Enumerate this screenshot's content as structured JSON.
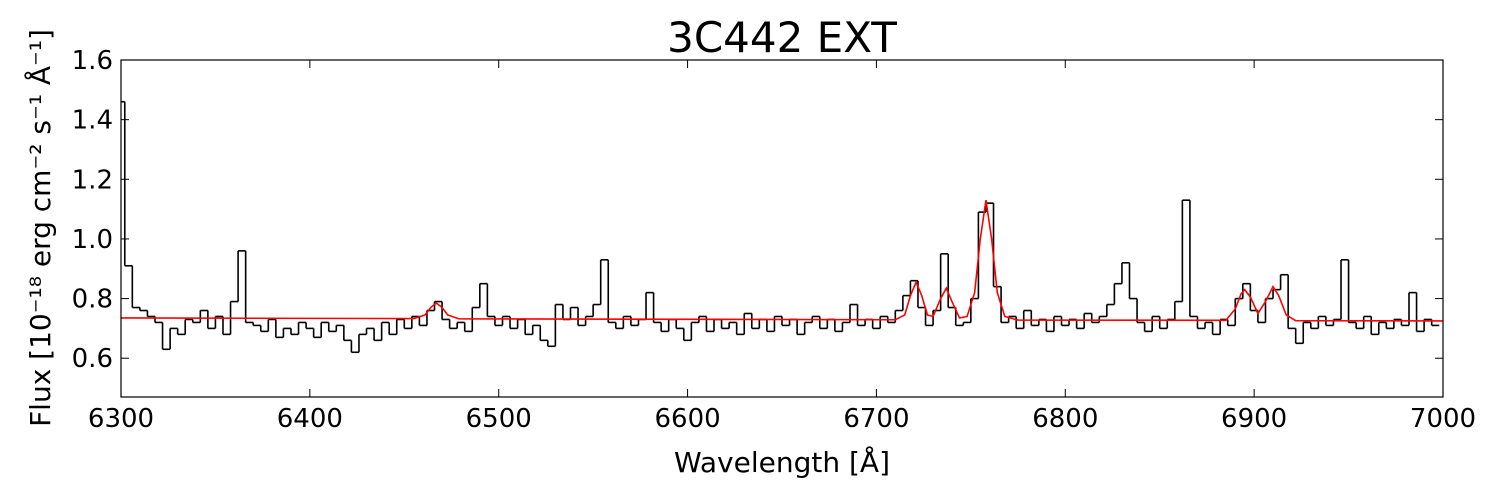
{
  "chart_data": {
    "type": "line",
    "title": "3C442 EXT",
    "xlabel": "Wavelength [Å]",
    "ylabel": "Flux [10⁻¹⁸ erg cm⁻² s⁻¹ Å⁻¹]",
    "xlim": [
      6300,
      7000
    ],
    "xticks": [
      6300,
      6400,
      6500,
      6600,
      6700,
      6800,
      6900,
      7000
    ],
    "ylim": [
      0.47,
      1.6
    ],
    "yticks": [
      0.6,
      0.8,
      {
        "value": 1,
        "label": "1.0"
      },
      1.2,
      1.4,
      1.6
    ],
    "series": [
      {
        "color": "#000000",
        "style": "steps",
        "x": [
          6300,
          6304,
          6308,
          6312,
          6316,
          6320,
          6324,
          6328,
          6332,
          6336,
          6340,
          6344,
          6348,
          6352,
          6356,
          6360,
          6364,
          6368,
          6372,
          6376,
          6380,
          6384,
          6388,
          6392,
          6396,
          6400,
          6404,
          6408,
          6412,
          6416,
          6420,
          6424,
          6428,
          6432,
          6436,
          6440,
          6444,
          6448,
          6452,
          6456,
          6460,
          6464,
          6468,
          6472,
          6476,
          6480,
          6484,
          6488,
          6492,
          6496,
          6500,
          6504,
          6508,
          6512,
          6516,
          6520,
          6524,
          6528,
          6532,
          6536,
          6540,
          6544,
          6548,
          6552,
          6556,
          6560,
          6564,
          6568,
          6572,
          6576,
          6580,
          6584,
          6588,
          6592,
          6596,
          6600,
          6604,
          6608,
          6612,
          6616,
          6620,
          6624,
          6628,
          6632,
          6636,
          6640,
          6644,
          6648,
          6652,
          6656,
          6660,
          6664,
          6668,
          6672,
          6676,
          6680,
          6684,
          6688,
          6692,
          6696,
          6700,
          6704,
          6708,
          6712,
          6716,
          6720,
          6724,
          6728,
          6732,
          6736,
          6740,
          6744,
          6748,
          6752,
          6756,
          6760,
          6764,
          6768,
          6772,
          6776,
          6780,
          6784,
          6788,
          6792,
          6796,
          6800,
          6804,
          6808,
          6812,
          6816,
          6820,
          6824,
          6828,
          6832,
          6836,
          6840,
          6844,
          6848,
          6852,
          6856,
          6860,
          6864,
          6868,
          6872,
          6876,
          6880,
          6884,
          6888,
          6892,
          6896,
          6900,
          6904,
          6908,
          6912,
          6916,
          6920,
          6924,
          6928,
          6932,
          6936,
          6940,
          6944,
          6948,
          6952,
          6956,
          6960,
          6964,
          6968,
          6972,
          6976,
          6980,
          6984,
          6988,
          6992,
          6996
        ],
        "values": [
          1.46,
          0.91,
          0.77,
          0.76,
          0.74,
          0.72,
          0.63,
          0.7,
          0.68,
          0.73,
          0.72,
          0.76,
          0.7,
          0.74,
          0.68,
          0.79,
          0.96,
          0.72,
          0.71,
          0.69,
          0.73,
          0.67,
          0.7,
          0.68,
          0.72,
          0.7,
          0.67,
          0.72,
          0.69,
          0.71,
          0.66,
          0.62,
          0.68,
          0.7,
          0.66,
          0.72,
          0.68,
          0.73,
          0.7,
          0.74,
          0.71,
          0.76,
          0.79,
          0.73,
          0.7,
          0.72,
          0.69,
          0.77,
          0.85,
          0.74,
          0.71,
          0.74,
          0.7,
          0.73,
          0.68,
          0.71,
          0.66,
          0.64,
          0.78,
          0.73,
          0.77,
          0.71,
          0.74,
          0.78,
          0.93,
          0.72,
          0.7,
          0.74,
          0.71,
          0.73,
          0.82,
          0.72,
          0.69,
          0.73,
          0.7,
          0.66,
          0.72,
          0.74,
          0.69,
          0.73,
          0.7,
          0.72,
          0.68,
          0.75,
          0.7,
          0.73,
          0.69,
          0.74,
          0.71,
          0.73,
          0.68,
          0.72,
          0.74,
          0.7,
          0.73,
          0.69,
          0.72,
          0.78,
          0.71,
          0.73,
          0.7,
          0.74,
          0.72,
          0.76,
          0.81,
          0.86,
          0.77,
          0.71,
          0.76,
          0.95,
          0.77,
          0.71,
          0.72,
          0.8,
          1.09,
          1.12,
          0.84,
          0.72,
          0.74,
          0.7,
          0.76,
          0.71,
          0.73,
          0.69,
          0.74,
          0.71,
          0.73,
          0.7,
          0.75,
          0.72,
          0.74,
          0.78,
          0.85,
          0.92,
          0.8,
          0.72,
          0.69,
          0.74,
          0.7,
          0.73,
          0.79,
          1.13,
          0.74,
          0.7,
          0.72,
          0.68,
          0.73,
          0.71,
          0.8,
          0.85,
          0.76,
          0.72,
          0.8,
          0.83,
          0.88,
          0.7,
          0.65,
          0.72,
          0.7,
          0.74,
          0.71,
          0.73,
          0.93,
          0.72,
          0.7,
          0.74,
          0.68,
          0.72,
          0.7,
          0.73,
          0.71,
          0.82,
          0.69,
          0.73,
          0.71
        ]
      },
      {
        "color": "#ff0000",
        "x": [
          6300,
          6455,
          6461,
          6464,
          6467,
          6470,
          6473,
          6479,
          6710,
          6715,
          6718,
          6721,
          6724,
          6727,
          6730,
          6734,
          6737,
          6740,
          6744,
          6748,
          6752,
          6755,
          6758,
          6761,
          6764,
          6768,
          6775,
          6885,
          6890,
          6893,
          6895,
          6898,
          6902,
          6906,
          6910,
          6913,
          6917,
          6922,
          7000
        ],
        "values": [
          0.735,
          0.733,
          0.745,
          0.77,
          0.785,
          0.77,
          0.745,
          0.732,
          0.729,
          0.745,
          0.81,
          0.855,
          0.81,
          0.745,
          0.74,
          0.8,
          0.835,
          0.79,
          0.735,
          0.74,
          0.82,
          1.0,
          1.13,
          1.0,
          0.82,
          0.74,
          0.728,
          0.727,
          0.765,
          0.815,
          0.83,
          0.805,
          0.75,
          0.79,
          0.84,
          0.81,
          0.745,
          0.726,
          0.725
        ]
      }
    ]
  }
}
